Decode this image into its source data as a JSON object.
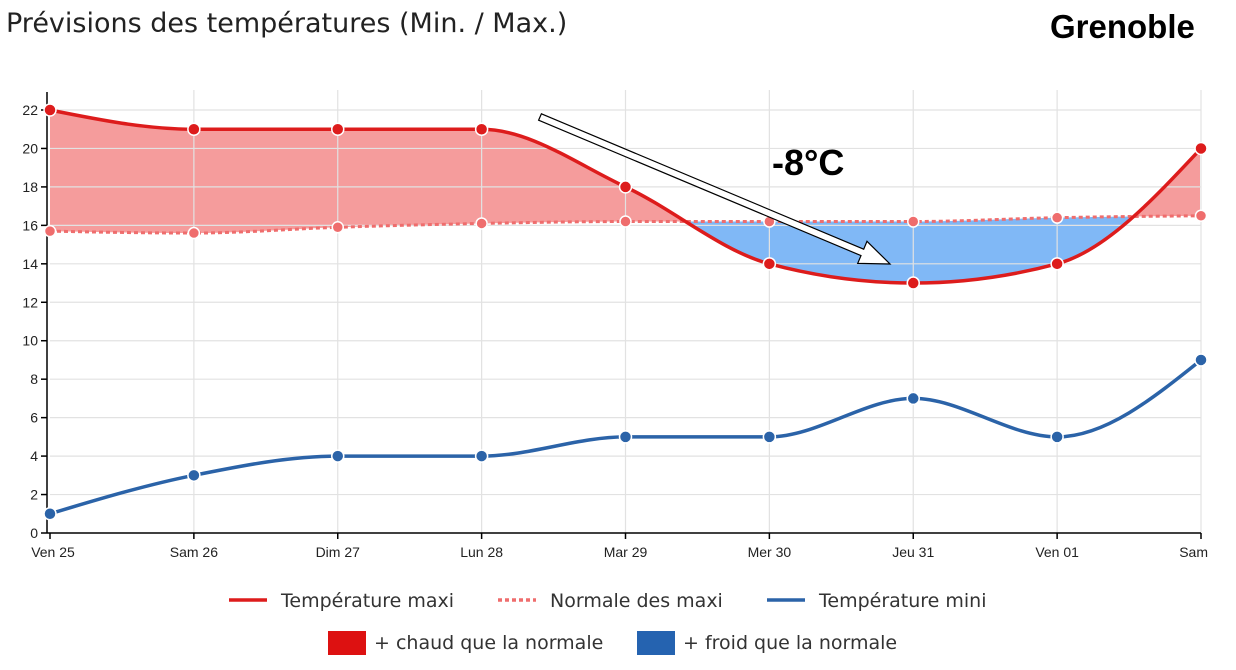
{
  "title": "Prévisions des températures (Min. / Max.)",
  "city": "Grenoble",
  "chart_data": {
    "type": "line",
    "categories": [
      "Ven 25",
      "Sam 26",
      "Dim 27",
      "Lun 28",
      "Mar 29",
      "Mer 30",
      "Jeu 31",
      "Ven 01",
      "Sam"
    ],
    "ylim": [
      0,
      22
    ],
    "yticks": [
      "0",
      "2",
      "4",
      "6",
      "8",
      "10",
      "12",
      "14",
      "16",
      "18",
      "20",
      "22"
    ],
    "grid": true,
    "legend_placement": "bottom",
    "series": [
      {
        "name": "Température maxi",
        "values": [
          22,
          21,
          21,
          21,
          18,
          14,
          13,
          14,
          20
        ],
        "color": "#dd1c1c",
        "style": "solid"
      },
      {
        "name": "Normale des maxi",
        "values": [
          15.7,
          15.6,
          15.9,
          16.1,
          16.2,
          16.2,
          16.2,
          16.4,
          16.5
        ],
        "color": "#ef6d6d",
        "style": "dotted"
      },
      {
        "name": "Température mini",
        "values": [
          1,
          3,
          4,
          4,
          5,
          5,
          7,
          5,
          9
        ],
        "color": "#2b63a8",
        "style": "solid"
      }
    ],
    "fill_legend": [
      {
        "label": "+ chaud que la normale",
        "color": "#dd1111"
      },
      {
        "label": "+ froid que la normale",
        "color": "#2563b0"
      }
    ],
    "annotation": {
      "text": "-8°C"
    },
    "colors": {
      "warm_fill": "#f59c9c",
      "cold_fill": "#80b8f6",
      "grid": "#e2e2e2",
      "axis": "#000000"
    }
  }
}
